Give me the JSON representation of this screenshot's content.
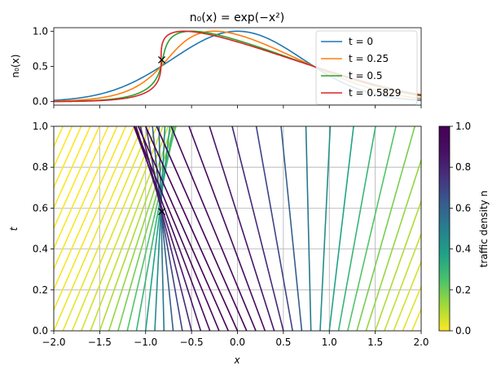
{
  "chart_data": [
    {
      "type": "line",
      "title": "n₀(x) = exp(−x²)",
      "ylabel": "n₀(x)",
      "xlim": [
        -2,
        2
      ],
      "ylim": [
        -0.05,
        1.05
      ],
      "yticks": [
        0.0,
        0.5,
        1.0
      ],
      "ytick_labels": [
        "0.0",
        "0.5",
        "1.0"
      ],
      "grid": false,
      "legend_position": "top-right",
      "shock_marker": {
        "x": -0.8245,
        "y": 0.5934
      },
      "series": [
        {
          "name": "t = 0",
          "t": 0,
          "color": "#1f77b4"
        },
        {
          "name": "t = 0.25",
          "t": 0.25,
          "color": "#ff7f0e"
        },
        {
          "name": "t = 0.5",
          "t": 0.5,
          "color": "#2ca02c"
        },
        {
          "name": "t = 0.5829",
          "t": 0.5829,
          "color": "#d62728"
        }
      ]
    },
    {
      "type": "line",
      "xlabel": "x",
      "ylabel": "t",
      "xlim": [
        -2,
        2
      ],
      "ylim": [
        0,
        1
      ],
      "xticks": [
        -2,
        -1.5,
        -1,
        -0.5,
        0,
        0.5,
        1,
        1.5,
        2
      ],
      "xtick_labels": [
        "−2.0",
        "−1.5",
        "−1.0",
        "−0.5",
        "0.0",
        "0.5",
        "1.0",
        "1.5",
        "2.0"
      ],
      "yticks": [
        0,
        0.2,
        0.4,
        0.6,
        0.8,
        1.0
      ],
      "ytick_labels": [
        "0.0",
        "0.2",
        "0.4",
        "0.6",
        "0.8",
        "1.0"
      ],
      "grid": true,
      "shock_marker": {
        "x": -0.8245,
        "t": 0.5829
      },
      "characteristic_x0_start": -4,
      "characteristic_x0_end": 2,
      "characteristic_x0_step": 0.1,
      "colormap": "viridis_r",
      "colorbar": {
        "label": "traffic density n",
        "range": [
          0,
          1
        ],
        "ticks": [
          0,
          0.2,
          0.4,
          0.6,
          0.8,
          1.0
        ],
        "tick_labels": [
          "0.0",
          "0.2",
          "0.4",
          "0.6",
          "0.8",
          "1.0"
        ]
      }
    }
  ]
}
